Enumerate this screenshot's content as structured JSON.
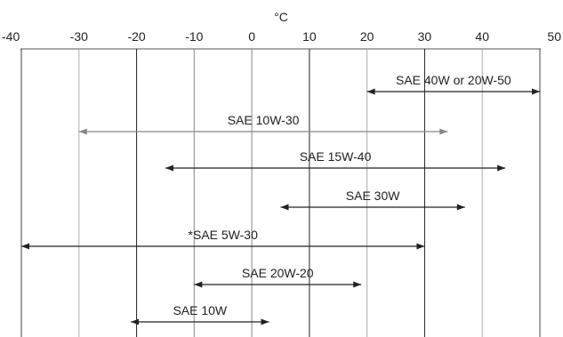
{
  "chart_data": {
    "type": "range",
    "unit": "°C",
    "x_axis": {
      "min": -40,
      "max": 50,
      "ticks": [
        -40,
        -30,
        -20,
        -10,
        0,
        10,
        20,
        30,
        40,
        50
      ],
      "tick_labels": [
        "-40",
        "-30",
        "-20",
        "-10",
        "0",
        "10",
        "20",
        "30",
        "40",
        "50"
      ]
    },
    "gridlines": [
      {
        "value": -30,
        "color": "#aaaaaa"
      },
      {
        "value": -20,
        "color": "#222222"
      },
      {
        "value": -10,
        "color": "#888888"
      },
      {
        "value": 0,
        "color": "#888888"
      },
      {
        "value": 10,
        "color": "#222222"
      },
      {
        "value": 20,
        "color": "#aaaaaa"
      },
      {
        "value": 30,
        "color": "#222222"
      },
      {
        "value": 40,
        "color": "#aaaaaa"
      }
    ],
    "series": [
      {
        "name": "SAE 40W or 20W-50",
        "from": 20,
        "to": 50,
        "color": "#222222"
      },
      {
        "name": "SAE 10W-30",
        "from": -30,
        "to": 34,
        "color": "#888888"
      },
      {
        "name": "SAE 15W-40",
        "from": -15,
        "to": 44,
        "color": "#222222"
      },
      {
        "name": "SAE 30W",
        "from": 5,
        "to": 37,
        "color": "#222222"
      },
      {
        "name": "*SAE 5W-30",
        "from": -40,
        "to": 30,
        "color": "#222222"
      },
      {
        "name": "SAE 20W-20",
        "from": -10,
        "to": 19,
        "color": "#222222"
      },
      {
        "name": "SAE 10W",
        "from": -21,
        "to": 3,
        "color": "#222222"
      }
    ]
  }
}
